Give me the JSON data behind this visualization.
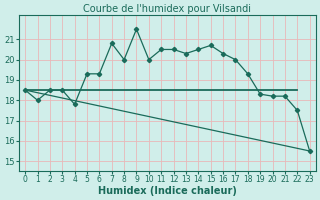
{
  "title": "Courbe de l'humidex pour Vilsandi",
  "xlabel": "Humidex (Indice chaleur)",
  "xlim": [
    -0.5,
    23.5
  ],
  "ylim": [
    14.5,
    22.2
  ],
  "xticks": [
    0,
    1,
    2,
    3,
    4,
    5,
    6,
    7,
    8,
    9,
    10,
    11,
    12,
    13,
    14,
    15,
    16,
    17,
    18,
    19,
    20,
    21,
    22,
    23
  ],
  "yticks": [
    15,
    16,
    17,
    18,
    19,
    20,
    21
  ],
  "bg_color": "#d0eeea",
  "line_color": "#1a6b5a",
  "grid_color": "#e8b8b8",
  "curve1_x": [
    0,
    1,
    2,
    3,
    4,
    5,
    6,
    7,
    8,
    9,
    10,
    11,
    12,
    13,
    14,
    15,
    16,
    17,
    18,
    19,
    20,
    21,
    22,
    23
  ],
  "curve1_y": [
    18.5,
    18.0,
    18.5,
    18.5,
    17.8,
    19.3,
    19.3,
    20.8,
    20.0,
    21.5,
    20.0,
    20.5,
    20.5,
    20.3,
    20.5,
    20.7,
    20.3,
    20.0,
    19.3,
    18.3,
    18.2,
    18.2,
    17.5,
    15.5
  ],
  "curve2_x": [
    0,
    22
  ],
  "curve2_y": [
    18.5,
    18.5
  ],
  "curve3_x": [
    0,
    23
  ],
  "curve3_y": [
    18.5,
    15.5
  ],
  "title_fontsize": 7,
  "xlabel_fontsize": 7,
  "tick_fontsize": 5.5
}
